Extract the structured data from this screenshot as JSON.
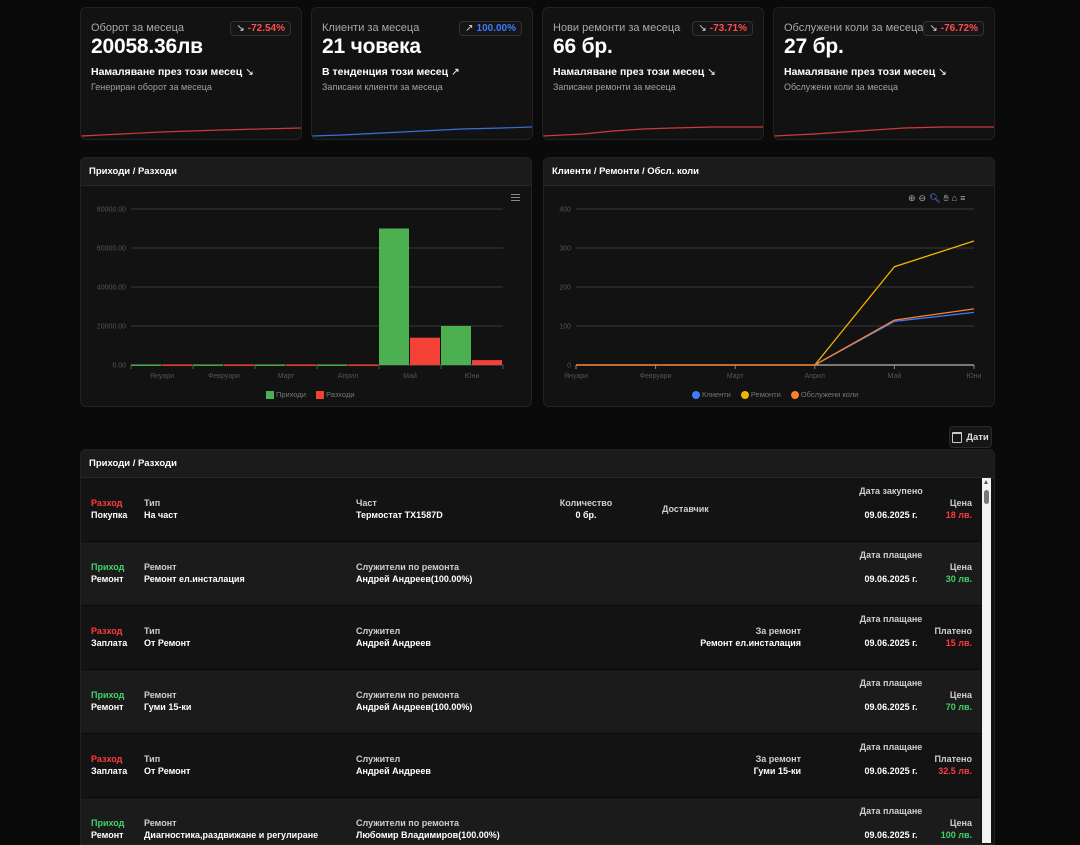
{
  "stats": [
    {
      "title": "Оборот за месеца",
      "badge": "-72.54%",
      "badge_color": "#ff4d4d",
      "arrow": "↘",
      "value": "20058.36лв",
      "trend": "Намаляване през този месец",
      "trend_icon": "↘",
      "sub": "Генериран оборот за месеца",
      "line_color": "#d03a3a"
    },
    {
      "title": "Клиенти за месеца",
      "badge": "100.00%",
      "badge_color": "#3b7dff",
      "arrow": "↗",
      "value": "21 човека",
      "trend": "В тенденция този месец",
      "trend_icon": "↗",
      "sub": "Записани клиенти за месеца",
      "line_color": "#3b6fd8"
    },
    {
      "title": "Нови ремонти за месеца",
      "badge": "-73.71%",
      "badge_color": "#ff4d4d",
      "arrow": "↘",
      "value": "66 бр.",
      "trend": "Намаляване през този месец",
      "trend_icon": "↘",
      "sub": "Записани ремонти за месеца",
      "line_color": "#d03a3a"
    },
    {
      "title": "Обслужени коли за месеца",
      "badge": "-76.72%",
      "badge_color": "#ff4d4d",
      "arrow": "↘",
      "value": "27 бр.",
      "trend": "Намаляване през този месец",
      "trend_icon": "↘",
      "sub": "Обслужени коли за месеца",
      "line_color": "#d03a3a"
    }
  ],
  "chart_data": [
    {
      "type": "bar",
      "title": "Приходи / Разходи",
      "categories": [
        "Януари",
        "Февруари",
        "Март",
        "Април",
        "Май",
        "Юни"
      ],
      "yticks": [
        "0.00",
        "20000.00",
        "40000.00",
        "60000.00",
        "80000.00"
      ],
      "ylim": [
        0,
        80000
      ],
      "series": [
        {
          "name": "Приходи",
          "color": "#4caf50",
          "values": [
            300,
            300,
            300,
            300,
            70000,
            20000
          ]
        },
        {
          "name": "Разходи",
          "color": "#f44336",
          "values": [
            300,
            300,
            300,
            300,
            14000,
            2500
          ]
        }
      ],
      "legend": "bottom-center"
    },
    {
      "type": "line",
      "title": "Клиенти / Ремонти / Обсл. коли",
      "categories": [
        "Януари",
        "Февруари",
        "Март",
        "Април",
        "Май",
        "Юни"
      ],
      "yticks": [
        "0",
        "100",
        "200",
        "300",
        "400"
      ],
      "ylim": [
        0,
        400
      ],
      "series": [
        {
          "name": "Клиенти",
          "color": "#3b7dff",
          "values": [
            0,
            0,
            0,
            0,
            112,
            135
          ]
        },
        {
          "name": "Ремонти",
          "color": "#f4b400",
          "values": [
            0,
            0,
            0,
            0,
            252,
            318
          ]
        },
        {
          "name": "Обслужени коли",
          "color": "#ff7f2a",
          "values": [
            0,
            0,
            0,
            0,
            115,
            144
          ]
        }
      ],
      "legend": "bottom-center"
    }
  ],
  "dates_button": "Дати",
  "table": {
    "title": "Приходи / Разходи",
    "rows": [
      {
        "kind": "Разход",
        "kind_color": "red",
        "sub": "Покупка",
        "a_lbl": "Тип",
        "a_val": "На част",
        "b_lbl": "Част",
        "b_val": "Термостат TX1587D",
        "c_lbl": "Количество",
        "c_val": "0 бр.",
        "d_lbl": "Доставчик",
        "d_val": "",
        "date_lbl": "Дата закупено",
        "date_val": "09.06.2025 г.",
        "price_lbl": "Цена",
        "price_val": "18 лв.",
        "price_color": "red"
      },
      {
        "kind": "Приход",
        "kind_color": "green",
        "sub": "Ремонт",
        "a_lbl": "Ремонт",
        "a_val": "Ремонт ел.инсталация",
        "b_lbl": "Служители по ремонта",
        "b_val": "Андрей Андреев(100.00%)",
        "c_lbl": "",
        "c_val": "",
        "d_lbl": "",
        "d_val": "",
        "date_lbl": "Дата плащане",
        "date_val": "09.06.2025 г.",
        "price_lbl": "Цена",
        "price_val": "30 лв.",
        "price_color": "green"
      },
      {
        "kind": "Разход",
        "kind_color": "red",
        "sub": "Заплата",
        "a_lbl": "Тип",
        "a_val": "От Ремонт",
        "b_lbl": "Служител",
        "b_val": "Андрей Андреев",
        "c_lbl": "",
        "c_val": "",
        "d_lbl": "За ремонт",
        "d_val": "Ремонт ел.инсталация",
        "date_lbl": "Дата плащане",
        "date_val": "09.06.2025 г.",
        "price_lbl": "Платено",
        "price_val": "15 лв.",
        "price_color": "red"
      },
      {
        "kind": "Приход",
        "kind_color": "green",
        "sub": "Ремонт",
        "a_lbl": "Ремонт",
        "a_val": "Гуми 15-ки",
        "b_lbl": "Служители по ремонта",
        "b_val": "Андрей Андреев(100.00%)",
        "c_lbl": "",
        "c_val": "",
        "d_lbl": "",
        "d_val": "",
        "date_lbl": "Дата плащане",
        "date_val": "09.06.2025 г.",
        "price_lbl": "Цена",
        "price_val": "70 лв.",
        "price_color": "green"
      },
      {
        "kind": "Разход",
        "kind_color": "red",
        "sub": "Заплата",
        "a_lbl": "Тип",
        "a_val": "От Ремонт",
        "b_lbl": "Служител",
        "b_val": "Андрей Андреев",
        "c_lbl": "",
        "c_val": "",
        "d_lbl": "За ремонт",
        "d_val": "Гуми 15-ки",
        "date_lbl": "Дата плащане",
        "date_val": "09.06.2025 г.",
        "price_lbl": "Платено",
        "price_val": "32.5 лв.",
        "price_color": "red"
      },
      {
        "kind": "Приход",
        "kind_color": "green",
        "sub": "Ремонт",
        "a_lbl": "Ремонт",
        "a_val": "Диагностика,раздвижане и регулиране преден мост",
        "b_lbl": "Служители по ремонта",
        "b_val": "Любомир Владимиров(100.00%)",
        "c_lbl": "",
        "c_val": "",
        "d_lbl": "",
        "d_val": "",
        "date_lbl": "Дата плащане",
        "date_val": "09.06.2025 г.",
        "price_lbl": "Цена",
        "price_val": "100 лв.",
        "price_color": "green"
      }
    ]
  }
}
